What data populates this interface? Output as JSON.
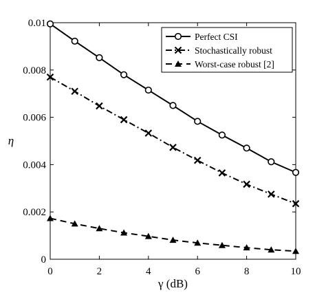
{
  "chart_data": {
    "type": "line",
    "title": "",
    "xlabel": "γ (dB)",
    "ylabel": "η",
    "xlim": [
      0,
      10
    ],
    "ylim": [
      0,
      0.01
    ],
    "xticks": [
      0,
      2,
      4,
      6,
      8,
      10
    ],
    "yticks": [
      0,
      0.002,
      0.004,
      0.006,
      0.008,
      0.01
    ],
    "xtick_labels": [
      "0",
      "2",
      "4",
      "6",
      "8",
      "10"
    ],
    "ytick_labels": [
      "0",
      "0.002",
      "0.004",
      "0.006",
      "0.008",
      "0.01"
    ],
    "grid": false,
    "legend_position": "top-right",
    "x": [
      0,
      1,
      2,
      3,
      4,
      5,
      6,
      7,
      8,
      9,
      10
    ],
    "series": [
      {
        "name": "Perfect CSI",
        "marker": "circle",
        "line": "solid",
        "values": [
          0.00995,
          0.00922,
          0.00852,
          0.0078,
          0.00715,
          0.0065,
          0.00583,
          0.00525,
          0.0047,
          0.00412,
          0.00367
        ]
      },
      {
        "name": "Stochastically robust",
        "marker": "x",
        "line": "dashdot",
        "values": [
          0.0077,
          0.0071,
          0.00648,
          0.0059,
          0.00533,
          0.00473,
          0.00418,
          0.00365,
          0.00317,
          0.00275,
          0.00235
        ]
      },
      {
        "name": "Worst-case robust [2]",
        "marker": "triangle",
        "line": "dashed",
        "values": [
          0.00173,
          0.0015,
          0.0013,
          0.00112,
          0.00097,
          0.00081,
          0.00069,
          0.00059,
          0.00049,
          0.0004,
          0.00034
        ]
      }
    ]
  }
}
